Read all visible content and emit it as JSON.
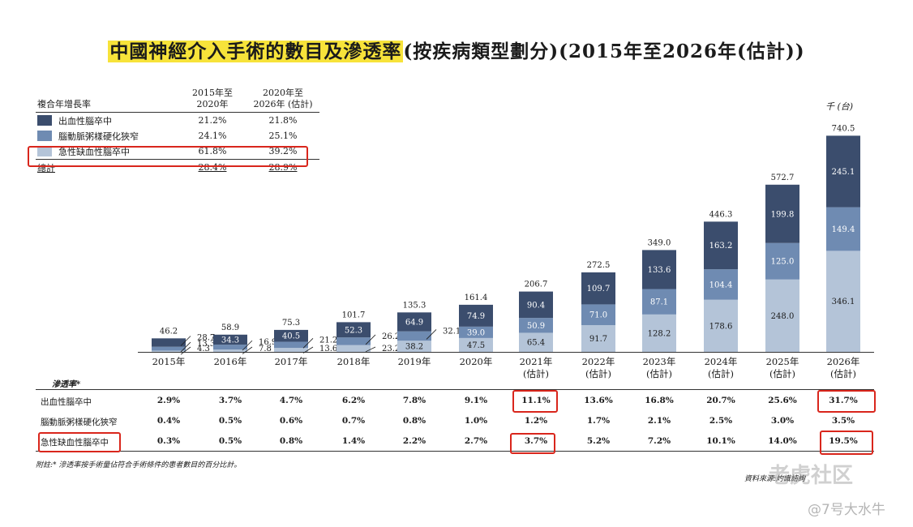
{
  "title_highlight": "中國神經介入手術的數目及滲透率",
  "title_rest": "(按疾病類型劃分)(2015年至2026年(估計))",
  "cagr_table": {
    "label": "複合年增長率",
    "col1": [
      "2015年至",
      "2020年"
    ],
    "col2": [
      "2020年至",
      "2026年 (估計)"
    ],
    "rows": [
      {
        "name": "出血性腦卒中",
        "v1": "21.2%",
        "v2": "21.8%"
      },
      {
        "name": "腦動脈粥樣硬化狹窄",
        "v1": "24.1%",
        "v2": "25.1%"
      },
      {
        "name": "急性缺血性腦卒中",
        "v1": "61.8%",
        "v2": "39.2%"
      }
    ],
    "total": {
      "name": "總計",
      "v1": "28.4%",
      "v2": "28.9%"
    }
  },
  "unit": "千 (台)",
  "colors": {
    "hemorrhagic": "#3b4d6d",
    "stenosis": "#6f8bb2",
    "ischemic": "#b4c4d8",
    "highlight": "#d9261c"
  },
  "chart_data": {
    "type": "bar",
    "stacked": true,
    "categories": [
      [
        "2015年"
      ],
      [
        "2016年"
      ],
      [
        "2017年"
      ],
      [
        "2018年"
      ],
      [
        "2019年"
      ],
      [
        "2020年"
      ],
      [
        "2021年",
        "(估計)"
      ],
      [
        "2022年",
        "(估計)"
      ],
      [
        "2023年",
        "(估計)"
      ],
      [
        "2024年",
        "(估計)"
      ],
      [
        "2025年",
        "(估計)"
      ],
      [
        "2026年",
        "(估計)"
      ]
    ],
    "series": [
      {
        "name": "急性缺血性腦卒中",
        "values": [
          4.3,
          7.8,
          13.6,
          23.2,
          38.2,
          47.5,
          65.4,
          91.7,
          128.2,
          178.6,
          248.0,
          346.1
        ]
      },
      {
        "name": "腦動脈粥樣硬化狹窄",
        "values": [
          13.3,
          16.9,
          21.2,
          26.2,
          32.1,
          39.0,
          50.9,
          71.0,
          87.1,
          104.4,
          125.0,
          149.4
        ]
      },
      {
        "name": "出血性腦卒中",
        "values": [
          28.7,
          34.3,
          40.5,
          52.3,
          64.9,
          74.9,
          90.4,
          109.7,
          133.6,
          163.2,
          199.8,
          245.1
        ]
      }
    ],
    "totals": [
      46.2,
      58.9,
      75.3,
      101.7,
      135.3,
      161.4,
      206.7,
      272.5,
      349.0,
      446.3,
      572.7,
      740.5
    ],
    "labels": [
      [
        "4.3",
        "13.3",
        "28.7"
      ],
      [
        "7.8",
        "16.9",
        "34.3"
      ],
      [
        "13.6",
        "21.2",
        "40.5"
      ],
      [
        "23.2",
        "26.2",
        "52.3"
      ],
      [
        "38.2",
        "32.1",
        "64.9"
      ],
      [
        "47.5",
        "39.0",
        "74.9"
      ],
      [
        "65.4",
        "50.9",
        "90.4"
      ],
      [
        "91.7",
        "71.0",
        "109.7"
      ],
      [
        "128.2",
        "87.1",
        "133.6"
      ],
      [
        "178.6",
        "104.4",
        "163.2"
      ],
      [
        "248.0",
        "125.0",
        "199.8"
      ],
      [
        "346.1",
        "149.4",
        "245.1"
      ]
    ],
    "total_labels": [
      "46.2",
      "58.9",
      "75.3",
      "101.7",
      "135.3",
      "161.4",
      "206.7",
      "272.5",
      "349.0",
      "446.3",
      "572.7",
      "740.5"
    ],
    "ylabel": "千 (台)",
    "ylim": [
      0,
      750
    ]
  },
  "penetration": {
    "title": "滲透率*",
    "rows": [
      {
        "name": "出血性腦卒中",
        "values": [
          "2.9%",
          "3.7%",
          "4.7%",
          "6.2%",
          "7.8%",
          "9.1%",
          "11.1%",
          "13.6%",
          "16.8%",
          "20.7%",
          "25.6%",
          "31.7%"
        ]
      },
      {
        "name": "腦動脈粥樣硬化狹窄",
        "values": [
          "0.4%",
          "0.5%",
          "0.6%",
          "0.7%",
          "0.8%",
          "1.0%",
          "1.2%",
          "1.7%",
          "2.1%",
          "2.5%",
          "3.0%",
          "3.5%"
        ]
      },
      {
        "name": "急性缺血性腦卒中",
        "values": [
          "0.3%",
          "0.5%",
          "0.8%",
          "1.4%",
          "2.2%",
          "2.7%",
          "3.7%",
          "5.2%",
          "7.2%",
          "10.1%",
          "14.0%",
          "19.5%"
        ]
      }
    ]
  },
  "note": "附註:* 滲透率按手術量佔符合手術條件的患者數目的百分比計。",
  "source": "資料來源:灼識諮詢",
  "watermark": "老虎社区",
  "watermark_user": "@7号大水牛"
}
